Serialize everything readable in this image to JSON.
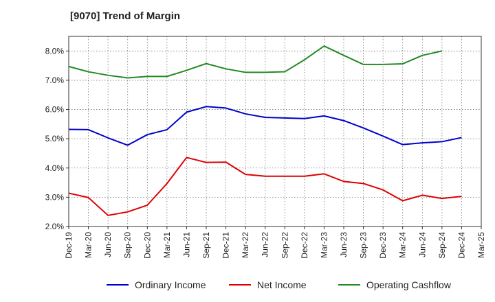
{
  "title": "[9070]  Trend of Margin",
  "chart_data": {
    "type": "line",
    "title": "[9070]  Trend of Margin",
    "x": [
      "Dec-19",
      "Mar-20",
      "Jun-20",
      "Sep-20",
      "Dec-20",
      "Mar-21",
      "Jun-21",
      "Sep-21",
      "Dec-21",
      "Mar-22",
      "Jun-22",
      "Sep-22",
      "Dec-22",
      "Mar-23",
      "Jun-23",
      "Sep-23",
      "Dec-23",
      "Mar-24",
      "Jun-24",
      "Sep-24",
      "Dec-24",
      "Mar-25"
    ],
    "y_ticks": [
      "2.0%",
      "3.0%",
      "4.0%",
      "5.0%",
      "6.0%",
      "7.0%",
      "8.0%"
    ],
    "ylim": [
      2.0,
      8.5
    ],
    "grid": true,
    "legend_position": "bottom",
    "series": [
      {
        "name": "Ordinary Income",
        "color": "#0000cc",
        "values": [
          5.32,
          5.31,
          5.03,
          4.78,
          5.14,
          5.31,
          5.91,
          6.1,
          6.05,
          5.85,
          5.73,
          5.71,
          5.69,
          5.78,
          5.62,
          5.37,
          5.09,
          4.8,
          4.86,
          4.9,
          5.04,
          null
        ]
      },
      {
        "name": "Net Income",
        "color": "#dd0000",
        "values": [
          3.14,
          2.99,
          2.38,
          2.5,
          2.73,
          3.47,
          4.36,
          4.19,
          4.2,
          3.78,
          3.72,
          3.72,
          3.72,
          3.8,
          3.54,
          3.47,
          3.25,
          2.88,
          3.07,
          2.96,
          3.03,
          null
        ]
      },
      {
        "name": "Operating Cashflow",
        "color": "#228b22",
        "values": [
          7.47,
          7.29,
          7.17,
          7.08,
          7.13,
          7.13,
          7.34,
          7.57,
          7.39,
          7.27,
          7.27,
          7.29,
          7.7,
          8.17,
          7.85,
          7.54,
          7.54,
          7.56,
          7.85,
          8.0,
          null,
          null
        ]
      }
    ]
  }
}
